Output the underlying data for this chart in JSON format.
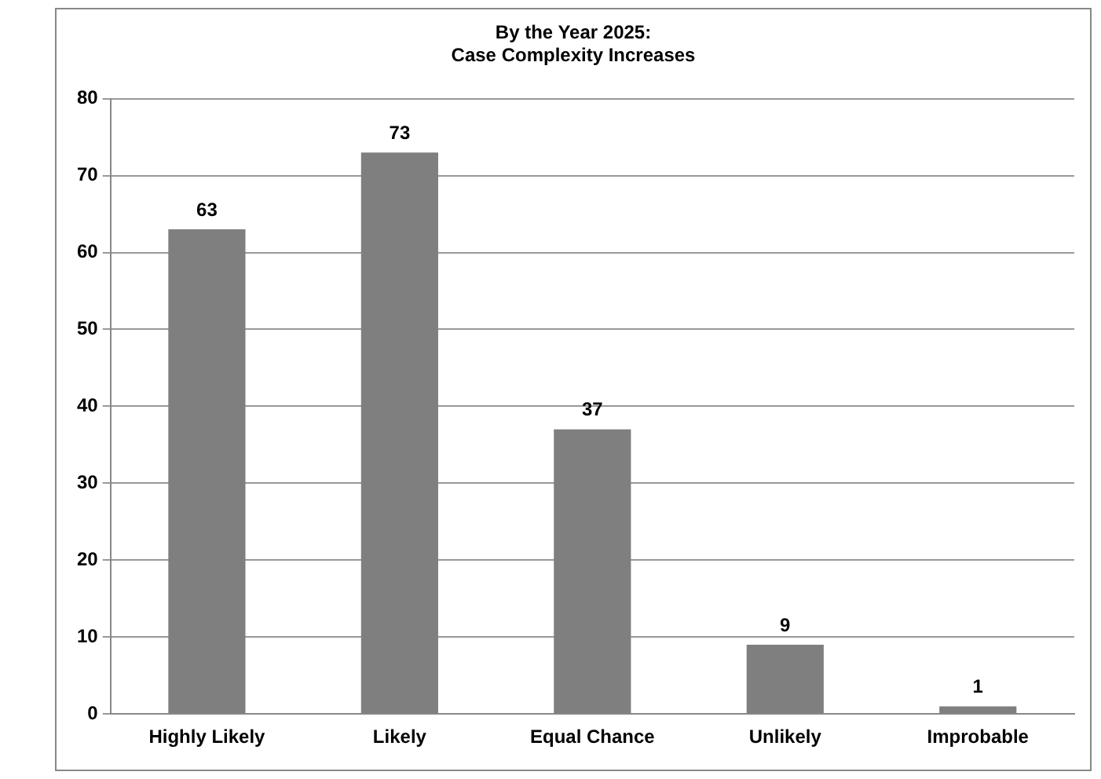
{
  "chart_data": {
    "type": "bar",
    "title": "By the Year 2025:\nCase Complexity Increases",
    "categories": [
      "Highly Likely",
      "Likely",
      "Equal Chance",
      "Unlikely",
      "Improbable"
    ],
    "values": [
      63,
      73,
      37,
      9,
      1
    ],
    "color": "#7f7f7f",
    "ylim": [
      0,
      80
    ],
    "yticks": [
      0,
      10,
      20,
      30,
      40,
      50,
      60,
      70,
      80
    ],
    "grid": "y",
    "data_labels": true
  }
}
